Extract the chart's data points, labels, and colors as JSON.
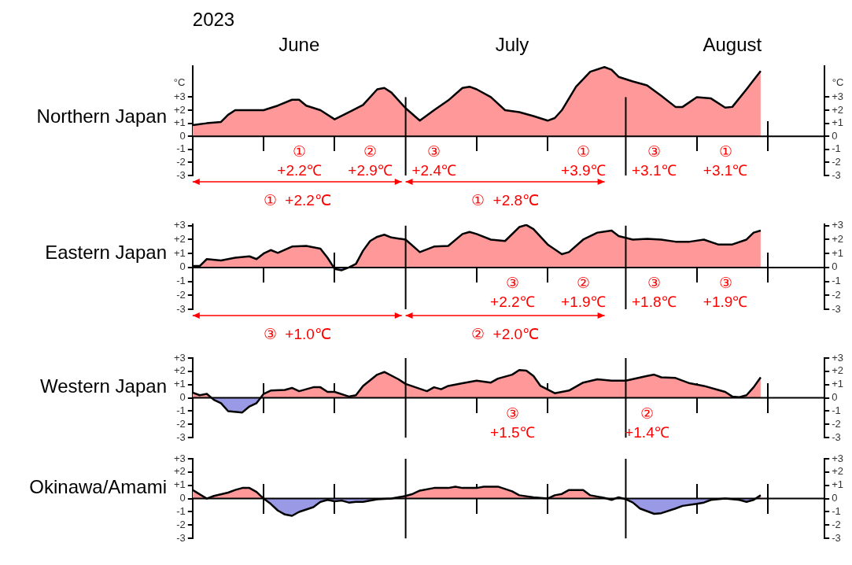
{
  "chart_data": [
    {
      "type": "area",
      "title": "Northern Japan",
      "ylabel": "°C",
      "y2label": "°C",
      "xlabel": "2023",
      "color": "#ff9999",
      "marker": "none",
      "x": [
        "2023-06-01",
        "2023-06-03",
        "2023-06-05",
        "2023-06-06",
        "2023-06-07",
        "2023-06-09",
        "2023-06-11",
        "2023-06-13",
        "2023-06-15",
        "2023-06-16",
        "2023-06-17",
        "2023-06-19",
        "2023-06-21",
        "2023-06-23",
        "2023-06-25",
        "2023-06-27",
        "2023-06-28",
        "2023-06-29",
        "2023-07-01",
        "2023-07-03",
        "2023-07-05",
        "2023-07-07",
        "2023-07-09",
        "2023-07-10",
        "2023-07-11",
        "2023-07-13",
        "2023-07-15",
        "2023-07-17",
        "2023-07-19",
        "2023-07-21",
        "2023-07-22",
        "2023-07-23",
        "2023-07-25",
        "2023-07-27",
        "2023-07-29",
        "2023-07-30",
        "2023-07-31",
        "2023-08-02",
        "2023-08-04",
        "2023-08-06",
        "2023-08-08",
        "2023-08-09",
        "2023-08-11",
        "2023-08-13",
        "2023-08-15",
        "2023-08-16",
        "2023-08-18",
        "2023-08-19",
        "2023-08-20"
      ],
      "values": [
        0.85,
        1.0,
        1.1,
        1.65,
        2.0,
        2.0,
        2.0,
        2.35,
        2.8,
        2.8,
        2.35,
        2.0,
        1.3,
        1.85,
        2.4,
        3.6,
        3.7,
        3.35,
        2.15,
        1.2,
        2.0,
        2.75,
        3.7,
        3.8,
        3.6,
        3.0,
        2.0,
        1.85,
        1.55,
        1.2,
        1.4,
        2.0,
        3.8,
        4.95,
        5.3,
        5.1,
        4.55,
        4.2,
        3.9,
        3.1,
        2.25,
        2.25,
        3.0,
        2.9,
        2.2,
        2.25,
        3.6,
        4.3,
        5.0
      ],
      "xlim": [
        "2023-06-01",
        "2023-08-29"
      ],
      "xticks": [
        {
          "value": "2023-06-16",
          "label": "June"
        },
        {
          "value": "2023-07-01",
          "label": null
        },
        {
          "value": "2023-07-16",
          "label": "July"
        },
        {
          "value": "2023-08-01",
          "label": null
        },
        {
          "value": "2023-08-16",
          "label": "August"
        }
      ],
      "ylim": [
        -3,
        5.4
      ],
      "yticks": [
        {
          "value": 3,
          "label": "+3"
        },
        {
          "value": 2,
          "label": "+2"
        },
        {
          "value": 1,
          "label": "+1"
        },
        0,
        -1,
        -2,
        -3
      ],
      "y2lim": [
        -3,
        5.4
      ],
      "y2ticks": [
        {
          "value": 3,
          "label": "+3"
        },
        {
          "value": 2,
          "label": "+2"
        },
        {
          "value": 1,
          "label": "+1"
        },
        0,
        -1,
        -2,
        -3
      ],
      "grid": true,
      "annotations": [
        "①\n+2.2℃",
        "②\n+2.9℃",
        "③\n+2.4℃",
        "①\n+3.9℃",
        "③\n+3.1℃",
        "①\n+3.1℃",
        "①  +2.2℃",
        "①  +2.8℃"
      ]
    },
    {
      "type": "area",
      "title": "Eastern Japan",
      "tick_labels": "y",
      "color": "#ff9999",
      "marker": "none",
      "x": [
        "2023-06-01",
        "2023-06-02",
        "2023-06-03",
        "2023-06-05",
        "2023-06-07",
        "2023-06-09",
        "2023-06-10",
        "2023-06-11",
        "2023-06-12",
        "2023-06-13",
        "2023-06-15",
        "2023-06-17",
        "2023-06-19",
        "2023-06-20",
        "2023-06-21",
        "2023-06-22",
        "2023-06-23",
        "2023-06-24",
        "2023-06-25",
        "2023-06-26",
        "2023-06-27",
        "2023-06-28",
        "2023-06-29",
        "2023-07-01",
        "2023-07-03",
        "2023-07-04",
        "2023-07-05",
        "2023-07-07",
        "2023-07-09",
        "2023-07-10",
        "2023-07-11",
        "2023-07-13",
        "2023-07-15",
        "2023-07-17",
        "2023-07-18",
        "2023-07-19",
        "2023-07-21",
        "2023-07-23",
        "2023-07-24",
        "2023-07-26",
        "2023-07-28",
        "2023-07-30",
        "2023-07-31",
        "2023-08-02",
        "2023-08-04",
        "2023-08-06",
        "2023-08-08",
        "2023-08-10",
        "2023-08-12",
        "2023-08-14",
        "2023-08-16",
        "2023-08-18",
        "2023-08-19",
        "2023-08-20"
      ],
      "values": [
        0.1,
        0.1,
        0.6,
        0.5,
        0.7,
        0.8,
        0.6,
        1.0,
        1.25,
        1.05,
        1.5,
        1.55,
        1.35,
        0.7,
        -0.1,
        -0.2,
        0.0,
        0.25,
        1.2,
        1.9,
        2.2,
        2.35,
        2.15,
        2.0,
        1.1,
        1.3,
        1.5,
        1.55,
        2.4,
        2.55,
        2.4,
        2.0,
        1.9,
        2.9,
        3.05,
        2.75,
        1.65,
        0.95,
        1.1,
        2.0,
        2.5,
        2.65,
        2.25,
        2.0,
        2.05,
        2.0,
        1.85,
        1.85,
        2.0,
        1.65,
        1.65,
        2.0,
        2.5,
        2.65
      ],
      "xlim": [
        "2023-06-01",
        "2023-08-29"
      ],
      "xticks": [
        {
          "value": "2023-07-01",
          "label": null
        },
        {
          "value": "2023-08-01",
          "label": null
        }
      ],
      "ylim": [
        -3,
        3.1
      ],
      "yticks": [
        {
          "value": 3,
          "label": "+3"
        },
        {
          "value": 2,
          "label": "+2"
        },
        {
          "value": 1,
          "label": "+1"
        },
        0,
        -1,
        -2,
        -3
      ],
      "y2lim": [
        -3,
        3.1
      ],
      "y2ticks": [
        {
          "value": 3,
          "label": "+3"
        },
        {
          "value": 2,
          "label": "+2"
        },
        {
          "value": 1,
          "label": "+1"
        },
        0,
        -1,
        -2,
        -3
      ],
      "grid": true,
      "annotations": [
        "③\n+2.2℃",
        "②\n+1.9℃",
        "③\n+1.8℃",
        "③\n+1.9℃",
        "③  +1.0℃",
        "②  +2.0℃"
      ]
    },
    {
      "type": "area",
      "title": "Western Japan",
      "tick_labels": "y",
      "color": "#ff9999",
      "marker": "none",
      "x": [
        "2023-06-01",
        "2023-06-02",
        "2023-06-03",
        "2023-06-04",
        "2023-06-05",
        "2023-06-06",
        "2023-06-08",
        "2023-06-09",
        "2023-06-10",
        "2023-06-11",
        "2023-06-12",
        "2023-06-14",
        "2023-06-15",
        "2023-06-16",
        "2023-06-18",
        "2023-06-19",
        "2023-06-20",
        "2023-06-21",
        "2023-06-23",
        "2023-06-24",
        "2023-06-25",
        "2023-06-27",
        "2023-06-28",
        "2023-06-30",
        "2023-07-01",
        "2023-07-04",
        "2023-07-05",
        "2023-07-06",
        "2023-07-07",
        "2023-07-09",
        "2023-07-11",
        "2023-07-13",
        "2023-07-14",
        "2023-07-16",
        "2023-07-17",
        "2023-07-18",
        "2023-07-19",
        "2023-07-20",
        "2023-07-22",
        "2023-07-24",
        "2023-07-26",
        "2023-07-28",
        "2023-07-30",
        "2023-08-01",
        "2023-08-04",
        "2023-08-05",
        "2023-08-06",
        "2023-08-08",
        "2023-08-10",
        "2023-08-12",
        "2023-08-14",
        "2023-08-15",
        "2023-08-16",
        "2023-08-17",
        "2023-08-18",
        "2023-08-19",
        "2023-08-20"
      ],
      "values": [
        0.4,
        0.2,
        0.3,
        -0.15,
        -0.4,
        -1.0,
        -1.1,
        -0.65,
        -0.4,
        0.3,
        0.55,
        0.6,
        0.75,
        0.5,
        0.8,
        0.8,
        0.45,
        0.45,
        0.1,
        0.2,
        0.9,
        1.75,
        1.95,
        1.4,
        1.05,
        0.5,
        0.8,
        0.65,
        0.9,
        1.1,
        1.3,
        1.15,
        1.45,
        1.75,
        2.1,
        2.05,
        1.65,
        0.9,
        0.35,
        0.55,
        1.15,
        1.4,
        1.3,
        1.3,
        1.65,
        1.75,
        1.55,
        1.5,
        1.1,
        0.9,
        0.6,
        0.45,
        0.1,
        0.05,
        0.2,
        0.8,
        1.55
      ],
      "xlim": [
        "2023-06-01",
        "2023-08-29"
      ],
      "xticks": [
        {
          "value": "2023-07-01",
          "label": null
        },
        {
          "value": "2023-08-01",
          "label": null
        }
      ],
      "ylim": [
        -3,
        3
      ],
      "yticks": [
        {
          "value": 3,
          "label": "+3"
        },
        {
          "value": 2,
          "label": "+2"
        },
        {
          "value": 1,
          "label": "+1"
        },
        0,
        -1,
        -2,
        -3
      ],
      "y2lim": [
        -3,
        3
      ],
      "y2ticks": [
        {
          "value": 3,
          "label": "+3"
        },
        {
          "value": 2,
          "label": "+2"
        },
        {
          "value": 1,
          "label": "+1"
        },
        0,
        -1,
        -2,
        -3
      ],
      "grid": true,
      "annotations": [
        "③\n+1.5℃",
        "②\n+1.4℃"
      ]
    },
    {
      "type": "area",
      "title": "Okinawa/Amami",
      "tick_labels": "y",
      "grid": true,
      "color": "#ff9999",
      "marker": "none",
      "x": [
        "2023-06-01",
        "2023-06-03",
        "2023-06-04",
        "2023-06-06",
        "2023-06-07",
        "2023-06-08",
        "2023-06-09",
        "2023-06-10",
        "2023-06-11",
        "2023-06-12",
        "2023-06-13",
        "2023-06-14",
        "2023-06-15",
        "2023-06-16",
        "2023-06-18",
        "2023-06-19",
        "2023-06-20",
        "2023-06-21",
        "2023-06-22",
        "2023-06-23",
        "2023-06-24",
        "2023-06-25",
        "2023-06-27",
        "2023-06-29",
        "2023-07-01",
        "2023-07-02",
        "2023-07-03",
        "2023-07-05",
        "2023-07-07",
        "2023-07-08",
        "2023-07-09",
        "2023-07-11",
        "2023-07-12",
        "2023-07-14",
        "2023-07-16",
        "2023-07-17",
        "2023-07-19",
        "2023-07-21",
        "2023-07-22",
        "2023-07-23",
        "2023-07-24",
        "2023-07-26",
        "2023-07-27",
        "2023-07-29",
        "2023-07-30",
        "2023-07-31",
        "2023-08-01",
        "2023-08-02",
        "2023-08-03",
        "2023-08-05",
        "2023-08-06",
        "2023-08-08",
        "2023-08-09",
        "2023-08-11",
        "2023-08-12",
        "2023-08-13",
        "2023-08-15",
        "2023-08-17",
        "2023-08-18",
        "2023-08-19",
        "2023-08-20"
      ],
      "values": [
        0.65,
        0,
        0.2,
        0.45,
        0.65,
        0.8,
        0.8,
        0.5,
        0,
        -0.4,
        -0.9,
        -1.2,
        -1.3,
        -1.0,
        -0.65,
        -0.25,
        -0.1,
        -0.2,
        -0.15,
        -0.3,
        -0.25,
        -0.25,
        -0.05,
        0,
        0.2,
        0.35,
        0.6,
        0.8,
        0.8,
        0.9,
        0.8,
        0.8,
        0.9,
        0.9,
        0.55,
        0.25,
        0.1,
        0,
        0.25,
        0.35,
        0.65,
        0.65,
        0.25,
        0.05,
        -0.1,
        0.1,
        -0.05,
        -0.3,
        -0.75,
        -1.15,
        -1.1,
        -0.75,
        -0.55,
        -0.4,
        -0.3,
        -0.1,
        0,
        -0.1,
        -0.25,
        -0.1,
        0.25
      ],
      "xlim": [
        "2023-06-01",
        "2023-08-29"
      ],
      "xticks": [
        {
          "value": "2023-07-01",
          "label": null
        },
        {
          "value": "2023-08-01",
          "label": null
        }
      ],
      "ylim": [
        -3,
        3
      ],
      "yticks": [
        {
          "value": 3,
          "label": "+3"
        },
        {
          "value": 2,
          "label": "+2"
        },
        {
          "value": 1,
          "label": "+1"
        },
        0,
        -1,
        -2,
        -3
      ],
      "y2lim": [
        -3,
        3
      ],
      "y2ticks": [
        {
          "value": 3,
          "label": "+3"
        },
        {
          "value": 2,
          "label": "+2"
        },
        {
          "value": 1,
          "label": "+1"
        },
        0,
        -1,
        -2,
        -3
      ]
    }
  ]
}
